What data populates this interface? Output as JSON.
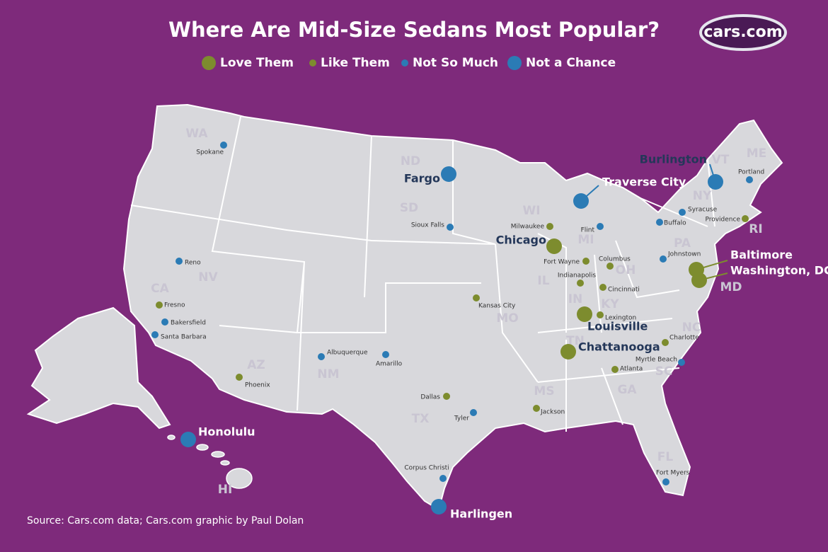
{
  "title": "Where Are Mid-Size Sedans Most Popular?",
  "logo": "cars.com",
  "legend": [
    {
      "label": "Love Them",
      "color": "#7d8c2e",
      "cities": [
        "Chicago",
        "Louisville",
        "Chattanooga",
        "Baltimore",
        "Washington, DC"
      ]
    },
    {
      "label": "Like Them",
      "color": "#7d8c2e",
      "cities": [
        "Milwaukee",
        "Fort Wayne",
        "Columbus",
        "Indianapolis",
        "Cincinnati",
        "Lexington",
        "Kansas City",
        "Fresno",
        "Phoenix",
        "Dallas",
        "Jackson",
        "Atlanta",
        "Charlotte",
        "Providence"
      ]
    },
    {
      "label": "Not So Much",
      "color": "#2b7bb5",
      "cities": [
        "Spokane",
        "Reno",
        "Bakersfield",
        "Santa Barbara",
        "Albuquerque",
        "Amarillo",
        "Sioux Falls",
        "Flint",
        "Buffalo",
        "Syracuse",
        "Portland",
        "Johnstown",
        "Tyler",
        "Corpus Christi",
        "Myrtle Beach",
        "Fort Myers"
      ]
    },
    {
      "label": "Not a Chance",
      "color": "#2b7bb5",
      "cities": [
        "Fargo",
        "Traverse City",
        "Burlington",
        "Honolulu",
        "Harlingen"
      ]
    }
  ],
  "states": [
    "WA",
    "ND",
    "SD",
    "NV",
    "CA",
    "AZ",
    "NM",
    "TX",
    "MO",
    "IL",
    "IN",
    "KY",
    "OH",
    "MI",
    "WI",
    "PA",
    "NY",
    "VT",
    "ME",
    "RI",
    "MD",
    "NC",
    "SC",
    "GA",
    "MS",
    "FL",
    "HI",
    "TN"
  ],
  "source": "Source: Cars.com data; Cars.com graphic by Paul Dolan"
}
